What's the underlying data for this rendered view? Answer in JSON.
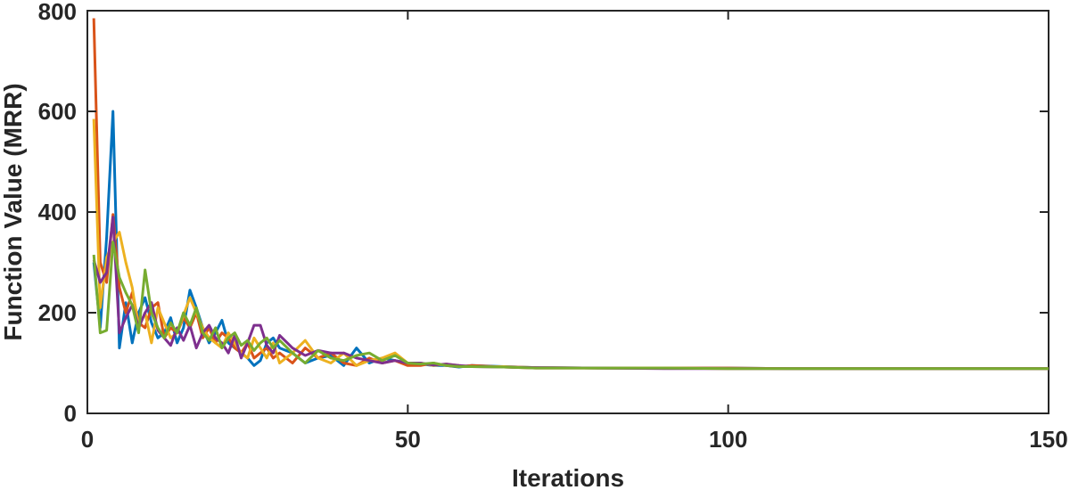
{
  "chart_data": {
    "type": "line",
    "title": "",
    "xlabel": "Iterations",
    "ylabel": "Function Value (MRR)",
    "xlim": [
      0,
      150
    ],
    "ylim": [
      0,
      800
    ],
    "xticks": [
      0,
      50,
      100,
      150
    ],
    "yticks": [
      0,
      200,
      400,
      600,
      800
    ],
    "xtick_labels": [
      "0",
      "50",
      "100",
      "150"
    ],
    "ytick_labels": [
      "0",
      "200",
      "400",
      "600",
      "800"
    ],
    "grid": false,
    "box": true,
    "series": [
      {
        "color": "#0072BD",
        "x": [
          1,
          2,
          3,
          4,
          5,
          6,
          7,
          8,
          9,
          10,
          11,
          12,
          13,
          14,
          15,
          16,
          17,
          18,
          19,
          20,
          21,
          22,
          23,
          24,
          25,
          26,
          27,
          28,
          29,
          30,
          32,
          34,
          36,
          38,
          40,
          42,
          44,
          46,
          48,
          50,
          52,
          54,
          56,
          58,
          60,
          65,
          70,
          80,
          90,
          100,
          110,
          120,
          130,
          140,
          150
        ],
        "y": [
          300,
          170,
          350,
          600,
          130,
          220,
          140,
          200,
          230,
          180,
          150,
          160,
          190,
          140,
          170,
          245,
          210,
          170,
          140,
          160,
          185,
          140,
          130,
          120,
          110,
          95,
          105,
          140,
          150,
          130,
          120,
          100,
          110,
          115,
          95,
          130,
          100,
          110,
          105,
          100,
          98,
          95,
          95,
          92,
          95,
          93,
          91,
          90,
          90,
          90,
          89,
          89,
          89,
          89,
          89
        ]
      },
      {
        "color": "#D95319",
        "x": [
          1,
          2,
          3,
          4,
          5,
          6,
          7,
          8,
          9,
          10,
          11,
          12,
          13,
          14,
          15,
          16,
          17,
          18,
          19,
          20,
          21,
          22,
          23,
          24,
          25,
          26,
          27,
          28,
          29,
          30,
          32,
          34,
          36,
          38,
          40,
          42,
          44,
          46,
          48,
          50,
          52,
          54,
          56,
          58,
          60,
          65,
          70,
          80,
          90,
          100,
          110,
          120,
          130,
          140,
          150
        ],
        "y": [
          785,
          300,
          260,
          395,
          250,
          200,
          240,
          180,
          170,
          210,
          220,
          150,
          170,
          160,
          190,
          170,
          200,
          150,
          170,
          140,
          160,
          150,
          130,
          120,
          140,
          110,
          120,
          130,
          110,
          120,
          100,
          130,
          110,
          120,
          100,
          95,
          110,
          100,
          105,
          95,
          95,
          100,
          95,
          93,
          95,
          92,
          90,
          90,
          90,
          90,
          89,
          89,
          89,
          89,
          89
        ]
      },
      {
        "color": "#EDB120",
        "x": [
          1,
          2,
          3,
          4,
          5,
          6,
          7,
          8,
          9,
          10,
          11,
          12,
          13,
          14,
          15,
          16,
          17,
          18,
          19,
          20,
          21,
          22,
          23,
          24,
          25,
          26,
          27,
          28,
          29,
          30,
          32,
          34,
          36,
          38,
          40,
          42,
          44,
          46,
          48,
          50,
          52,
          54,
          56,
          58,
          60,
          65,
          70,
          80,
          90,
          100,
          110,
          120,
          130,
          140,
          150
        ],
        "y": [
          585,
          210,
          310,
          340,
          360,
          300,
          250,
          170,
          200,
          140,
          210,
          180,
          150,
          160,
          195,
          230,
          200,
          170,
          150,
          140,
          130,
          160,
          140,
          120,
          110,
          150,
          130,
          110,
          140,
          100,
          120,
          145,
          110,
          100,
          120,
          95,
          105,
          110,
          120,
          100,
          100,
          95,
          98,
          95,
          93,
          93,
          91,
          90,
          90,
          89,
          89,
          89,
          89,
          89,
          89
        ]
      },
      {
        "color": "#7E2F8E",
        "x": [
          1,
          2,
          3,
          4,
          5,
          6,
          7,
          8,
          9,
          10,
          11,
          12,
          13,
          14,
          15,
          16,
          17,
          18,
          19,
          20,
          21,
          22,
          23,
          24,
          25,
          26,
          27,
          28,
          29,
          30,
          32,
          34,
          36,
          38,
          40,
          42,
          44,
          46,
          48,
          50,
          52,
          54,
          56,
          58,
          60,
          65,
          70,
          80,
          90,
          100,
          110,
          120,
          130,
          140,
          150
        ],
        "y": [
          305,
          260,
          280,
          390,
          160,
          190,
          215,
          170,
          200,
          220,
          165,
          150,
          135,
          170,
          145,
          175,
          130,
          160,
          175,
          150,
          140,
          120,
          155,
          110,
          140,
          175,
          175,
          135,
          120,
          155,
          130,
          115,
          125,
          120,
          120,
          110,
          105,
          100,
          105,
          100,
          100,
          96,
          98,
          95,
          93,
          92,
          91,
          90,
          89,
          89,
          89,
          89,
          89,
          89,
          89
        ]
      },
      {
        "color": "#77AC30",
        "x": [
          1,
          2,
          3,
          4,
          5,
          6,
          7,
          8,
          9,
          10,
          11,
          12,
          13,
          14,
          15,
          16,
          17,
          18,
          19,
          20,
          21,
          22,
          23,
          24,
          25,
          26,
          27,
          28,
          29,
          30,
          32,
          34,
          36,
          38,
          40,
          42,
          44,
          46,
          48,
          50,
          52,
          54,
          56,
          58,
          60,
          65,
          70,
          80,
          90,
          100,
          110,
          120,
          130,
          140,
          150
        ],
        "y": [
          315,
          160,
          165,
          340,
          270,
          240,
          215,
          160,
          285,
          200,
          170,
          150,
          180,
          160,
          200,
          175,
          210,
          160,
          145,
          170,
          130,
          150,
          160,
          135,
          145,
          125,
          140,
          150,
          130,
          145,
          120,
          100,
          125,
          110,
          105,
          115,
          120,
          105,
          115,
          100,
          98,
          100,
          95,
          93,
          93,
          92,
          90,
          90,
          90,
          89,
          89,
          89,
          89,
          89,
          89
        ]
      }
    ]
  }
}
